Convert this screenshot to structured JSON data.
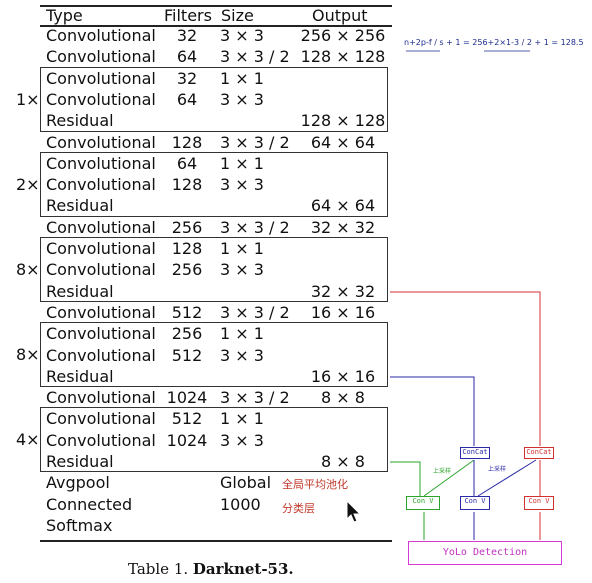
{
  "table": {
    "headers": [
      "Type",
      "Filters",
      "Size",
      "Output"
    ],
    "rows": [
      {
        "type": "Convolutional",
        "filters": "32",
        "size": "3 × 3",
        "output": "256 × 256"
      },
      {
        "type": "Convolutional",
        "filters": "64",
        "size": "3 × 3 / 2",
        "output": "128 × 128"
      },
      {
        "type": "Convolutional",
        "filters": "32",
        "size": "1 × 1",
        "output": ""
      },
      {
        "type": "Convolutional",
        "filters": "64",
        "size": "3 × 3",
        "output": ""
      },
      {
        "type": "Residual",
        "filters": "",
        "size": "",
        "output": "128 × 128"
      },
      {
        "type": "Convolutional",
        "filters": "128",
        "size": "3 × 3 / 2",
        "output": "64 × 64"
      },
      {
        "type": "Convolutional",
        "filters": "64",
        "size": "1 × 1",
        "output": ""
      },
      {
        "type": "Convolutional",
        "filters": "128",
        "size": "3 × 3",
        "output": ""
      },
      {
        "type": "Residual",
        "filters": "",
        "size": "",
        "output": "64 × 64"
      },
      {
        "type": "Convolutional",
        "filters": "256",
        "size": "3 × 3 / 2",
        "output": "32 × 32"
      },
      {
        "type": "Convolutional",
        "filters": "128",
        "size": "1 × 1",
        "output": ""
      },
      {
        "type": "Convolutional",
        "filters": "256",
        "size": "3 × 3",
        "output": ""
      },
      {
        "type": "Residual",
        "filters": "",
        "size": "",
        "output": "32 × 32"
      },
      {
        "type": "Convolutional",
        "filters": "512",
        "size": "3 × 3 / 2",
        "output": "16 × 16"
      },
      {
        "type": "Convolutional",
        "filters": "256",
        "size": "1 × 1",
        "output": ""
      },
      {
        "type": "Convolutional",
        "filters": "512",
        "size": "3 × 3",
        "output": ""
      },
      {
        "type": "Residual",
        "filters": "",
        "size": "",
        "output": "16 × 16"
      },
      {
        "type": "Convolutional",
        "filters": "1024",
        "size": "3 × 3 / 2",
        "output": "8 × 8"
      },
      {
        "type": "Convolutional",
        "filters": "512",
        "size": "1 × 1",
        "output": ""
      },
      {
        "type": "Convolutional",
        "filters": "1024",
        "size": "3 × 3",
        "output": ""
      },
      {
        "type": "Residual",
        "filters": "",
        "size": "",
        "output": "8 × 8"
      },
      {
        "type": "Avgpool",
        "filters": "",
        "size": "Global",
        "output": ""
      },
      {
        "type": "Connected",
        "filters": "",
        "size": "1000",
        "output": ""
      },
      {
        "type": "Softmax",
        "filters": "",
        "size": "",
        "output": ""
      }
    ],
    "multipliers": [
      "1×",
      "2×",
      "8×",
      "8×",
      "4×"
    ]
  },
  "caption": {
    "prefix": "Table 1. ",
    "bold": "Darknet-53."
  },
  "annotations": {
    "formula": "n+2p-f / s + 1 = 256+2×1-3 / 2 + 1 = 128.5",
    "avgpool_note": "全局平均池化",
    "connected_note": "分类层"
  },
  "diagram": {
    "nodes": {
      "conv1": "Con V",
      "concat1": "ConCat",
      "conv2": "Con V",
      "concat2": "ConCat",
      "conv3": "Con V"
    },
    "upsample1": "上采样",
    "upsample2": "上采样",
    "detection": "YoLo Detection"
  },
  "colors": {
    "green": "#2aa52a",
    "blue": "#2a2aa8",
    "red": "#d03030",
    "magenta": "#d63ad6",
    "note_red": "#c0392b"
  }
}
